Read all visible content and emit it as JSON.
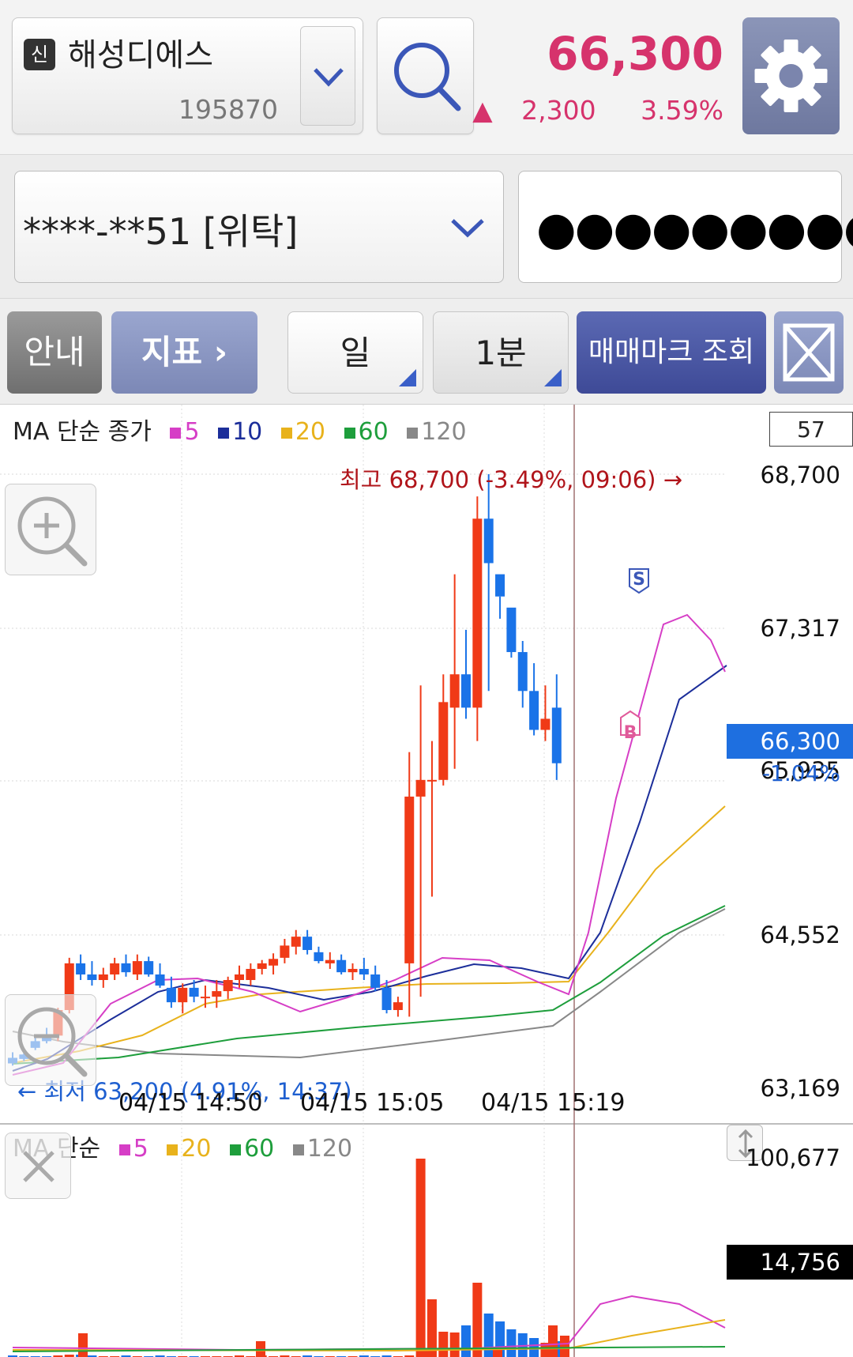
{
  "stock": {
    "badge": "신",
    "name": "해성디에스",
    "code": "195870"
  },
  "quote": {
    "price": "66,300",
    "arrow": "▲",
    "change": "2,300",
    "change_pct": "3.59%"
  },
  "account": {
    "number": "****-**51 [위탁]",
    "password_mask": "●●●●●●●●●"
  },
  "toolbar": {
    "guide": "안내",
    "indicator": "지표 ›",
    "period": "일",
    "interval": "1분",
    "trade_marks": "매매마크 조회"
  },
  "chart": {
    "count": "57",
    "legend_main": {
      "title": "MA 단순 종가",
      "ma": [
        "5",
        "10",
        "20",
        "60",
        "120"
      ]
    },
    "legend_vol": {
      "title": "MA 단순",
      "ma": [
        "5",
        "20",
        "60",
        "120"
      ]
    },
    "price_axis": [
      "68,700",
      "67,317",
      "65,935",
      "64,552",
      "63,169"
    ],
    "current_price": "66,300",
    "current_pct": "-1.04%",
    "high_label": "최고 68,700 (-3.49%, 09:06) →",
    "low_label": "← 최저 63,200 (4.91%, 14:37)",
    "x_labels": [
      "04/15 14:50",
      "04/15 15:05",
      "04/15 15:19"
    ],
    "volume_axis": "100,677",
    "current_volume": "14,756",
    "marks": {
      "buy": "B",
      "sell": "S"
    }
  },
  "colors": {
    "up": "#f03a17",
    "down": "#1a73e8",
    "ma5": "#d63ec6",
    "ma10": "#1c2e9a",
    "ma20": "#e8b21c",
    "ma60": "#1e9e3c",
    "ma120": "#888888",
    "accent": "#d6336c"
  },
  "icons": [
    "search-icon",
    "gear-icon",
    "chevron-down-icon",
    "expand-icon",
    "zoom-in-icon",
    "zoom-out-icon",
    "close-icon",
    "vertical-scale-icon"
  ]
}
